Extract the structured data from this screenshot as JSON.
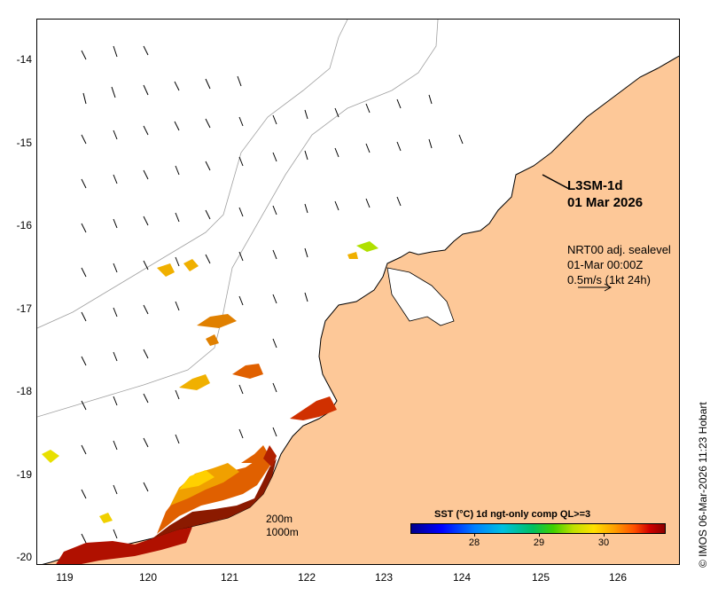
{
  "map": {
    "y_ticks": [
      "-14",
      "-15",
      "-16",
      "-17",
      "-18",
      "-19",
      "-20"
    ],
    "x_ticks": [
      "119",
      "120",
      "121",
      "122",
      "123",
      "124",
      "125",
      "126"
    ],
    "colors": {
      "land": "#fdc898",
      "ocean": "#ffffff",
      "coast": "#000000",
      "isobath": "#a0a0a0"
    }
  },
  "product": {
    "title_line1": "L3SM-1d",
    "title_line2": "01 Mar 2026"
  },
  "current": {
    "line1": "NRT00 adj. sealevel",
    "line2": "01-Mar 00:00Z",
    "line3": "0.5m/s (1kt 24h)"
  },
  "isobaths": {
    "shallow": "200m",
    "deep": "1000m"
  },
  "colorbar": {
    "title": "SST (°C) 1d ngt-only comp QL>=3",
    "ticks": [
      "28",
      "29",
      "30"
    ]
  },
  "credit": "© IMOS 06-Mar-2026 11:23 Hobart"
}
